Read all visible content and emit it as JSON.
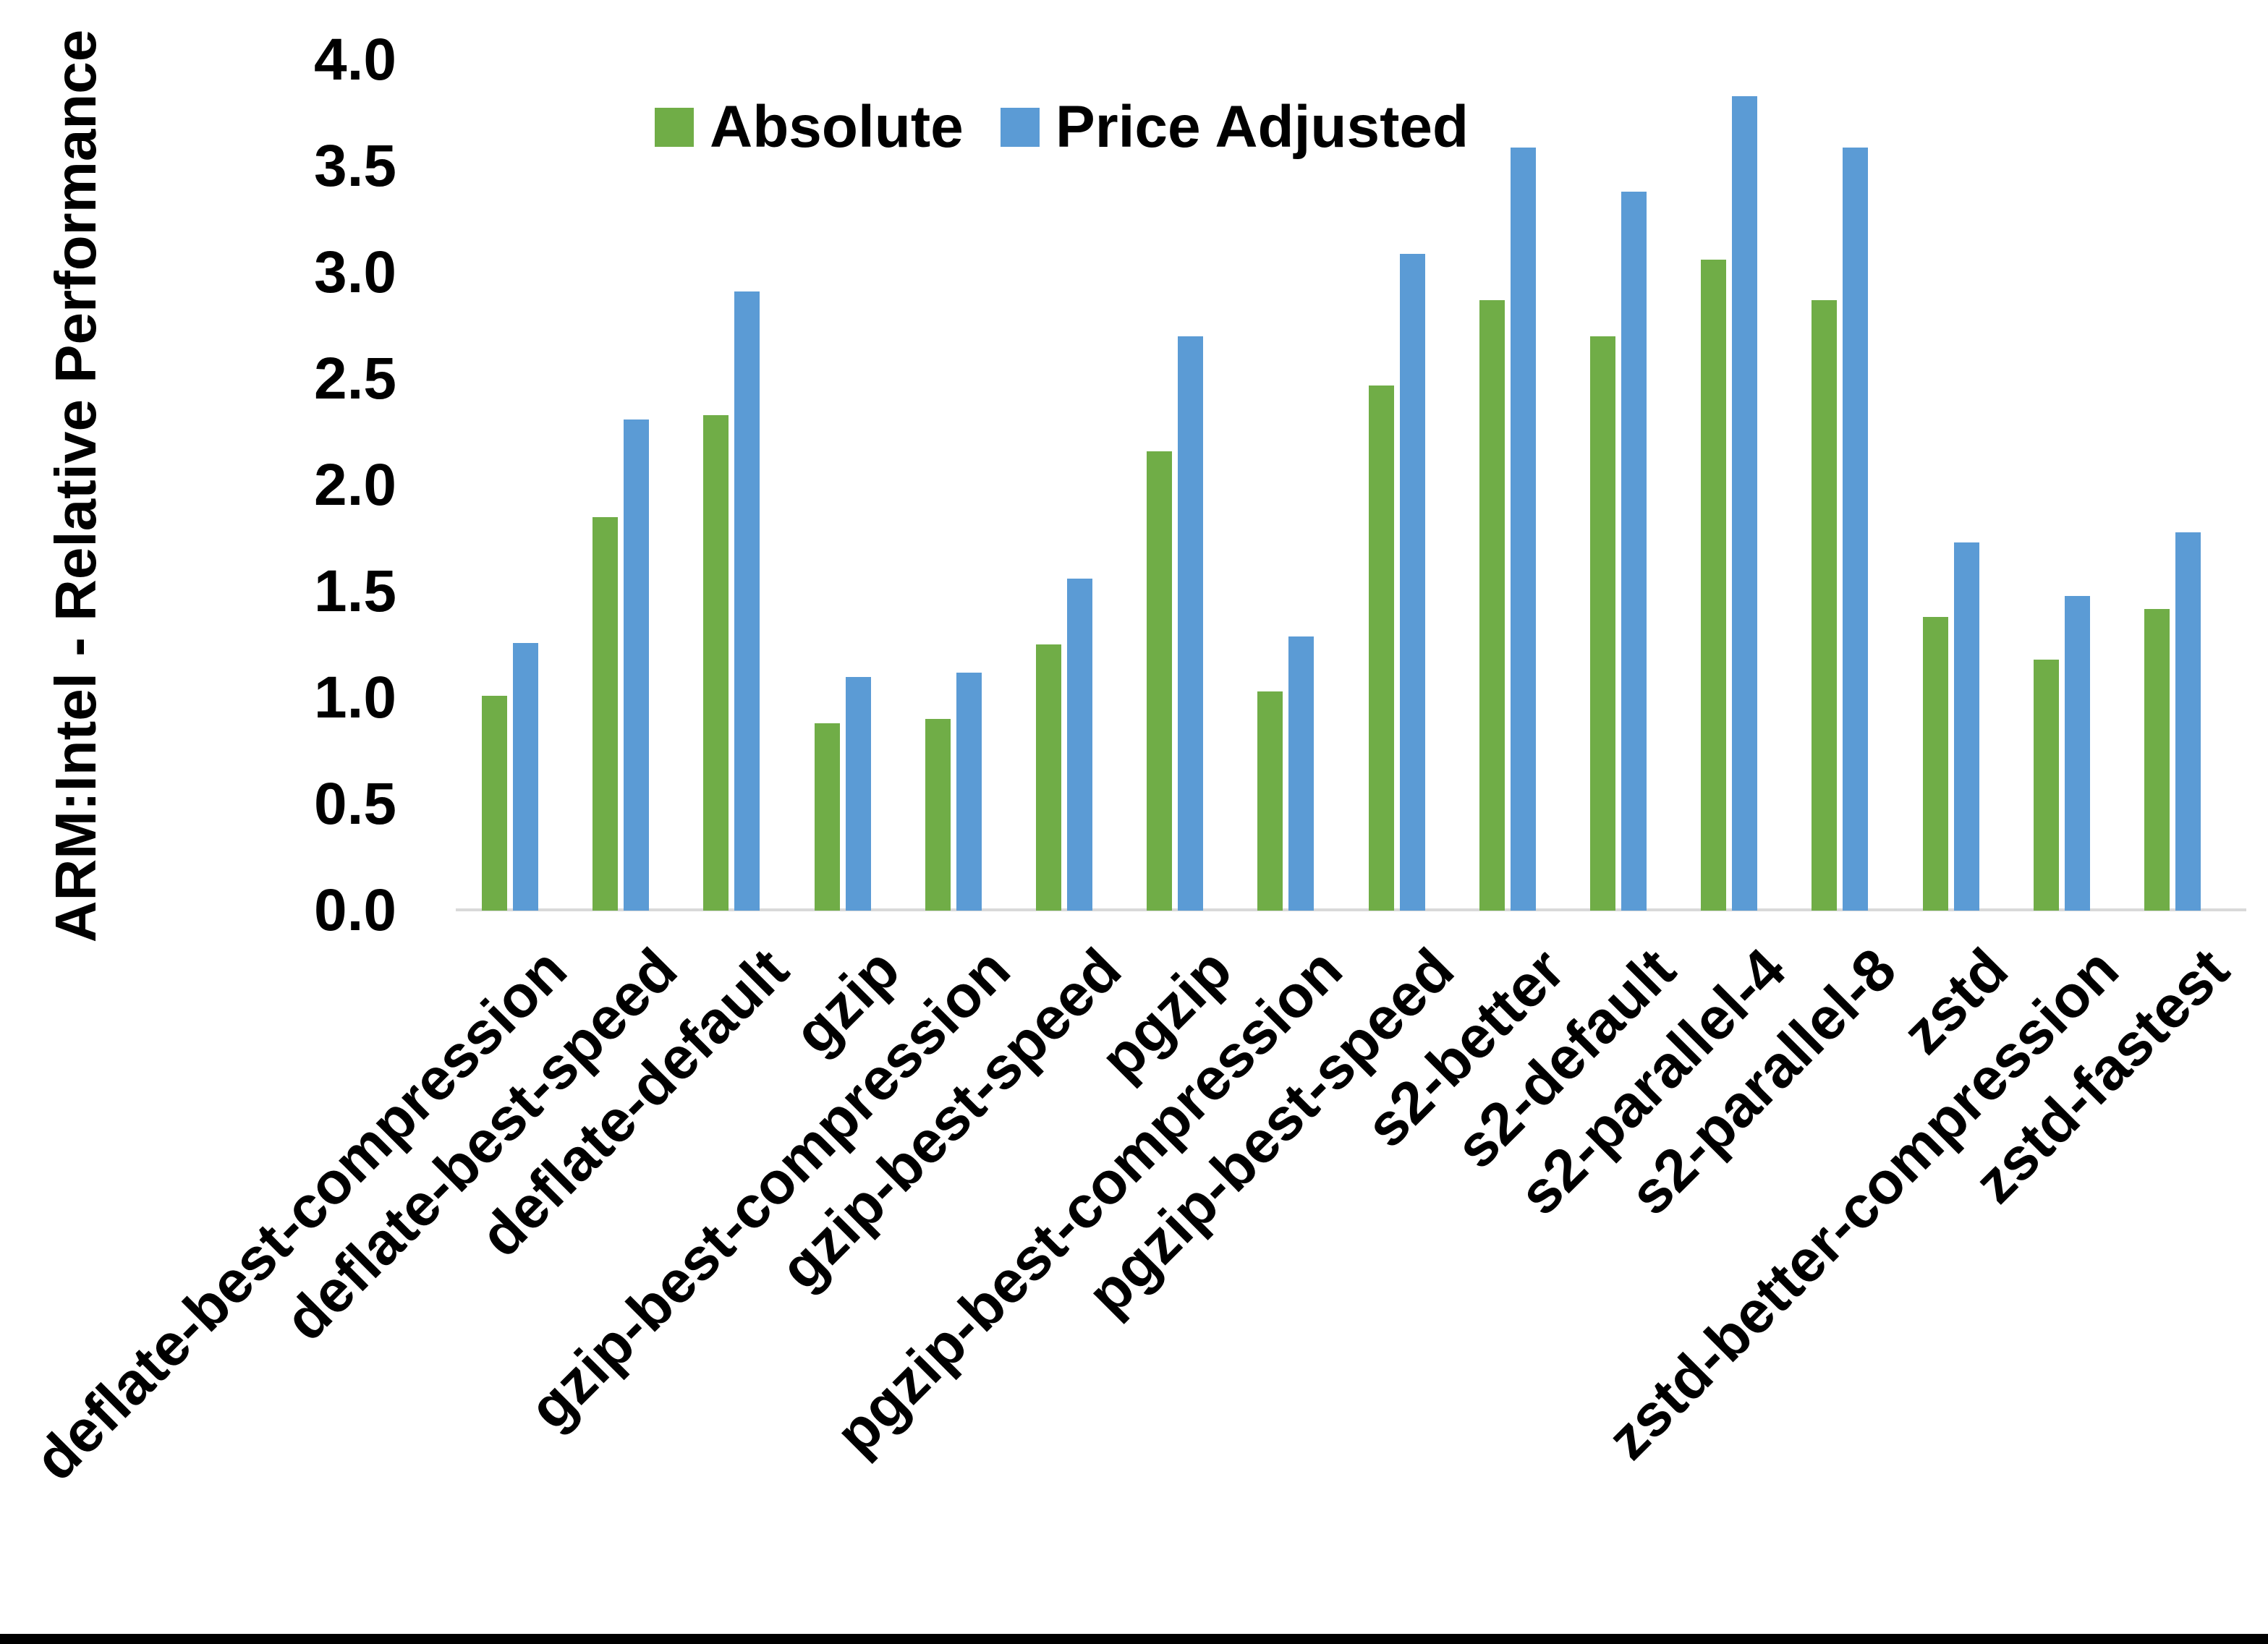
{
  "chart_data": {
    "type": "bar",
    "title": "",
    "ylabel": "ARM:Intel - Relative Performance",
    "xlabel": "",
    "ylim": [
      0.0,
      4.0
    ],
    "ytick_step": 0.5,
    "ytick_labels": [
      "0.0",
      "0.5",
      "1.0",
      "1.5",
      "2.0",
      "2.5",
      "3.0",
      "3.5",
      "4.0"
    ],
    "grid": false,
    "legend_position": "top-center",
    "categories": [
      "deflate-best-compression",
      "deflate-best-speed",
      "deflate-default",
      "gzip",
      "gzip-best-compression",
      "gzip-best-speed",
      "pgzip",
      "pgzip-best-compression",
      "pgzip-best-speed",
      "s2-better",
      "s2-default",
      "s2-parallel-4",
      "s2-parallel-8",
      "zstd",
      "zstd-better-compression",
      "zstd-fastest"
    ],
    "series": [
      {
        "name": "Absolute",
        "color": "#70AD47",
        "values": [
          1.01,
          1.85,
          2.33,
          0.88,
          0.9,
          1.25,
          2.16,
          1.03,
          2.47,
          2.87,
          2.7,
          3.06,
          2.87,
          1.38,
          1.18,
          1.42
        ]
      },
      {
        "name": "Price Adjusted",
        "color": "#5B9BD5",
        "values": [
          1.26,
          2.31,
          2.91,
          1.1,
          1.12,
          1.56,
          2.7,
          1.29,
          3.09,
          3.59,
          3.38,
          3.83,
          3.59,
          1.73,
          1.48,
          1.78
        ]
      }
    ],
    "axis_line_color": "#D9D9D9",
    "text_color": "#000000",
    "background_color": "#FFFFFF",
    "bottom_border_color": "#000000"
  }
}
